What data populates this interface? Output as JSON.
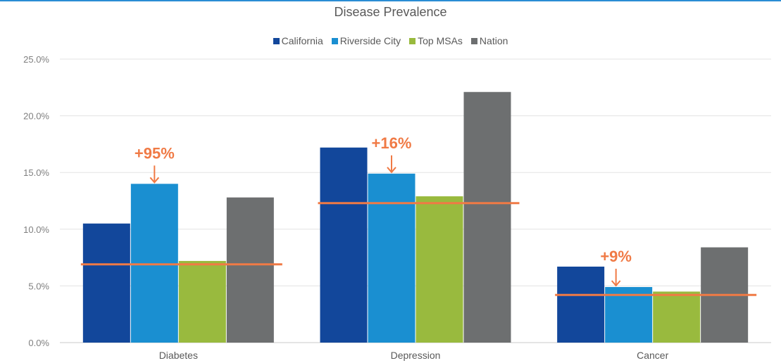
{
  "chart_data": {
    "type": "bar",
    "title": "Disease Prevalence",
    "categories": [
      "Diabetes",
      "Depression",
      "Cancer"
    ],
    "series": [
      {
        "name": "California",
        "values": [
          10.5,
          17.2,
          6.7
        ],
        "color": "#12479b"
      },
      {
        "name": "Riverside City",
        "values": [
          14.0,
          14.9,
          4.9
        ],
        "color": "#1a8fd1"
      },
      {
        "name": "Top MSAs",
        "values": [
          7.2,
          12.9,
          4.5
        ],
        "color": "#99ba3e"
      },
      {
        "name": "Nation",
        "values": [
          12.8,
          22.1,
          8.4
        ],
        "color": "#6d6f70"
      }
    ],
    "ylim": [
      0,
      25
    ],
    "yticks": [
      "0.0%",
      "5.0%",
      "10.0%",
      "15.0%",
      "20.0%",
      "25.0%"
    ],
    "ytick_values": [
      0,
      5,
      10,
      15,
      20,
      25
    ],
    "grid": true,
    "legend_position": "top-center",
    "annotations": [
      {
        "category": "Diabetes",
        "text": "+95%",
        "reference_value": 6.9,
        "target_series": "Riverside City"
      },
      {
        "category": "Depression",
        "text": "+16%",
        "reference_value": 12.3,
        "target_series": "Riverside City"
      },
      {
        "category": "Cancer",
        "text": "+9%",
        "reference_value": 4.2,
        "target_series": "Riverside City"
      }
    ],
    "annotation_color": "#f07a45"
  }
}
